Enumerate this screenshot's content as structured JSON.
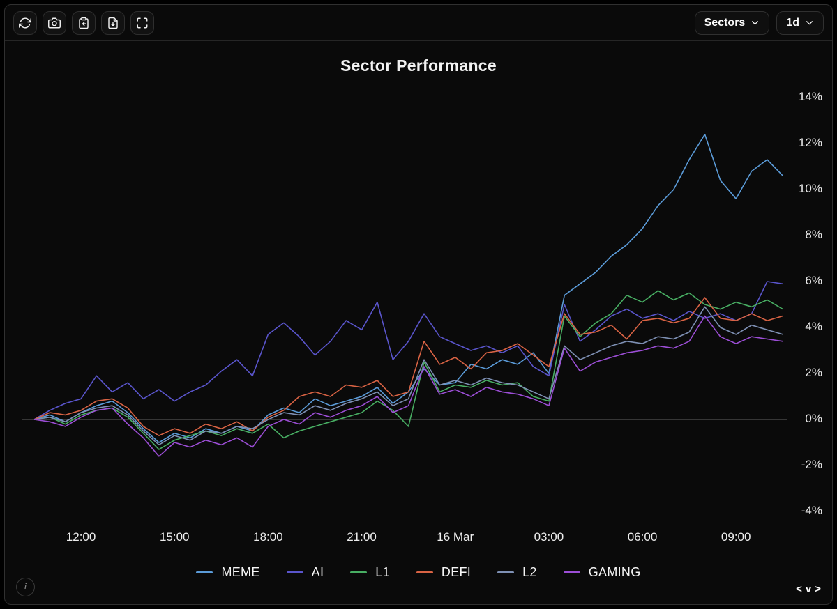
{
  "toolbar": {
    "sectors_label": "Sectors",
    "timeframe_label": "1d"
  },
  "footer": {
    "info_glyph": "i",
    "nav_left": "<",
    "nav_down": "v",
    "nav_right": ">"
  },
  "chart_data": {
    "type": "line",
    "title": "Sector Performance",
    "xlabel": "",
    "ylabel": "",
    "ylim": [
      -5,
      15
    ],
    "grid": false,
    "zero_line": true,
    "legend_position": "bottom",
    "x_interval_minutes": 30,
    "x_start": "15 Mar 10:30",
    "x_tick_indices": [
      3,
      9,
      15,
      21,
      27,
      33,
      39,
      45
    ],
    "x_tick_labels": [
      "12:00",
      "15:00",
      "18:00",
      "21:00",
      "16 Mar",
      "03:00",
      "06:00",
      "09:00"
    ],
    "y_ticks": [
      {
        "value": 14,
        "label": "14%"
      },
      {
        "value": 12,
        "label": "12%"
      },
      {
        "value": 10,
        "label": "10%"
      },
      {
        "value": 8,
        "label": "8%"
      },
      {
        "value": 6,
        "label": "6%"
      },
      {
        "value": 4,
        "label": "4%"
      },
      {
        "value": 2,
        "label": "2%"
      },
      {
        "value": 0,
        "label": "0%"
      },
      {
        "value": -2,
        "label": "-2%"
      },
      {
        "value": -4,
        "label": "-4%"
      }
    ],
    "series": [
      {
        "name": "MEME",
        "color": "#5b9bd8",
        "unit": "%",
        "values": [
          0.0,
          0.2,
          -0.1,
          0.3,
          0.6,
          0.8,
          0.3,
          -0.4,
          -1.0,
          -0.6,
          -0.8,
          -0.4,
          -0.6,
          -0.3,
          -0.5,
          0.2,
          0.5,
          0.3,
          0.9,
          0.6,
          0.8,
          1.0,
          1.4,
          0.7,
          1.2,
          2.2,
          1.5,
          1.6,
          2.4,
          2.2,
          2.6,
          2.4,
          2.9,
          2.0,
          5.4,
          5.9,
          6.4,
          7.1,
          7.6,
          8.3,
          9.3,
          10.0,
          11.3,
          12.4,
          10.4,
          9.6,
          10.8,
          11.3,
          10.6
        ]
      },
      {
        "name": "AI",
        "color": "#5a55cc",
        "unit": "%",
        "values": [
          0.0,
          0.4,
          0.7,
          0.9,
          1.9,
          1.2,
          1.6,
          0.9,
          1.3,
          0.8,
          1.2,
          1.5,
          2.1,
          2.6,
          1.9,
          3.7,
          4.2,
          3.6,
          2.8,
          3.4,
          4.3,
          3.9,
          5.1,
          2.6,
          3.4,
          4.6,
          3.6,
          3.3,
          3.0,
          3.2,
          2.9,
          3.2,
          2.3,
          1.9,
          5.0,
          3.4,
          3.9,
          4.5,
          4.8,
          4.4,
          4.6,
          4.3,
          4.7,
          4.4,
          4.6,
          4.3,
          4.6,
          6.0,
          5.9
        ]
      },
      {
        "name": "L1",
        "color": "#48ae63",
        "unit": "%",
        "values": [
          0.0,
          0.1,
          -0.2,
          0.2,
          0.4,
          0.5,
          0.1,
          -0.6,
          -1.3,
          -0.9,
          -0.7,
          -0.5,
          -0.7,
          -0.4,
          -0.6,
          -0.2,
          -0.8,
          -0.5,
          -0.3,
          -0.1,
          0.1,
          0.3,
          0.8,
          0.4,
          -0.3,
          2.5,
          1.2,
          1.5,
          1.4,
          1.7,
          1.5,
          1.6,
          1.0,
          0.8,
          4.5,
          3.6,
          4.2,
          4.6,
          5.4,
          5.1,
          5.6,
          5.2,
          5.5,
          5.0,
          4.8,
          5.1,
          4.9,
          5.2,
          4.8
        ]
      },
      {
        "name": "DEFI",
        "color": "#d96344",
        "unit": "%",
        "values": [
          0.0,
          0.3,
          0.2,
          0.4,
          0.8,
          0.9,
          0.5,
          -0.3,
          -0.7,
          -0.4,
          -0.6,
          -0.2,
          -0.4,
          -0.1,
          -0.5,
          0.1,
          0.4,
          1.0,
          1.2,
          1.0,
          1.5,
          1.4,
          1.7,
          1.0,
          1.2,
          3.4,
          2.4,
          2.7,
          2.2,
          2.9,
          3.0,
          3.3,
          2.8,
          2.3,
          4.6,
          3.7,
          3.8,
          4.1,
          3.5,
          4.3,
          4.4,
          4.2,
          4.4,
          5.3,
          4.4,
          4.3,
          4.6,
          4.3,
          4.5
        ]
      },
      {
        "name": "L2",
        "color": "#7e90b4",
        "unit": "%",
        "values": [
          0.0,
          0.1,
          -0.1,
          0.3,
          0.5,
          0.6,
          0.2,
          -0.5,
          -1.1,
          -0.7,
          -0.9,
          -0.5,
          -0.6,
          -0.3,
          -0.4,
          0.0,
          0.3,
          0.2,
          0.6,
          0.4,
          0.7,
          0.9,
          1.2,
          0.6,
          0.9,
          2.6,
          1.5,
          1.7,
          1.5,
          1.8,
          1.6,
          1.5,
          1.2,
          0.9,
          3.2,
          2.6,
          2.9,
          3.2,
          3.4,
          3.3,
          3.6,
          3.5,
          3.8,
          4.9,
          4.0,
          3.7,
          4.1,
          3.9,
          3.7
        ]
      },
      {
        "name": "GAMING",
        "color": "#9c4ed6",
        "unit": "%",
        "values": [
          0.0,
          -0.1,
          -0.3,
          0.1,
          0.4,
          0.5,
          -0.2,
          -0.8,
          -1.6,
          -1.0,
          -1.2,
          -0.9,
          -1.1,
          -0.8,
          -1.2,
          -0.3,
          0.0,
          -0.2,
          0.3,
          0.1,
          0.4,
          0.6,
          1.0,
          0.3,
          0.6,
          2.3,
          1.1,
          1.3,
          1.0,
          1.4,
          1.2,
          1.1,
          0.9,
          0.6,
          3.1,
          2.1,
          2.5,
          2.7,
          2.9,
          3.0,
          3.2,
          3.1,
          3.4,
          4.5,
          3.6,
          3.3,
          3.6,
          3.5,
          3.4
        ]
      }
    ]
  }
}
